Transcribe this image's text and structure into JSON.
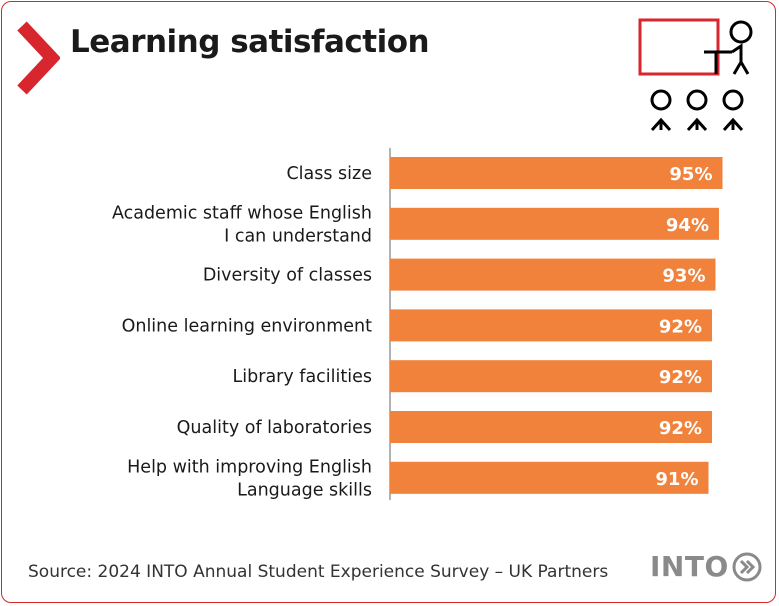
{
  "header": {
    "title": "Learning satisfaction"
  },
  "icons": {
    "chevron": "chevron-right-icon",
    "classroom": "classroom-presenter-icon"
  },
  "colors": {
    "bar": "#f0823c",
    "accent": "#d7262e",
    "axis": "#9a9a9a",
    "bar_label": "#ffffff",
    "text": "#1a1a1a",
    "logo": "#8a8a8a"
  },
  "chart_data": {
    "type": "bar",
    "orientation": "horizontal",
    "categories": [
      [
        "Class size"
      ],
      [
        "Academic staff whose English",
        "I can understand"
      ],
      [
        "Diversity of classes"
      ],
      [
        "Online learning environment"
      ],
      [
        "Library facilities"
      ],
      [
        "Quality of laboratories"
      ],
      [
        "Help with improving English",
        "Language skills"
      ]
    ],
    "values": [
      95,
      94,
      93,
      92,
      92,
      92,
      91
    ],
    "value_labels": [
      "95%",
      "94%",
      "93%",
      "92%",
      "92%",
      "92%",
      "91%"
    ],
    "xlim": [
      0,
      100
    ],
    "grid": false,
    "legend": "none"
  },
  "footer": {
    "source": "Source: 2024 INTO Annual Student Experience Survey – UK Partners",
    "logo_text": "INTO"
  }
}
